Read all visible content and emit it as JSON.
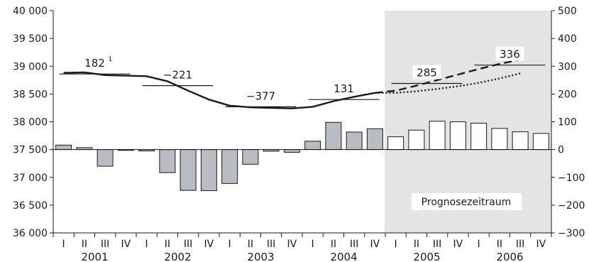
{
  "chart_data": {
    "type": "bar+line",
    "left_axis": {
      "ylim": [
        36000,
        40000
      ],
      "ticks": [
        "36 000",
        "36 500",
        "37 000",
        "37 500",
        "38 000",
        "38 500",
        "39 000",
        "39 500",
        "40 000"
      ],
      "tick_values": [
        36000,
        36500,
        37000,
        37500,
        38000,
        38500,
        39000,
        39500,
        40000
      ]
    },
    "right_axis": {
      "ylim": [
        -300,
        500
      ],
      "ticks": [
        "−300",
        "−200",
        "−100",
        "0",
        "100",
        "200",
        "300",
        "400",
        "500"
      ],
      "tick_values": [
        -300,
        -200,
        -100,
        0,
        100,
        200,
        300,
        400,
        500
      ]
    },
    "quarters": [
      "I",
      "II",
      "III",
      "IV",
      "I",
      "II",
      "III",
      "IV",
      "I",
      "II",
      "III",
      "IV",
      "I",
      "II",
      "III",
      "IV",
      "I",
      "II",
      "III",
      "IV",
      "I",
      "II",
      "III",
      "IV"
    ],
    "years": [
      "2001",
      "2002",
      "2003",
      "2004",
      "2005",
      "2006"
    ],
    "forecast_label": "Prognosezeitraum",
    "forecast_start_index": 16,
    "bars": [
      16,
      7,
      -60,
      -3,
      -5,
      -83,
      -147,
      -148,
      -122,
      -53,
      -6,
      -10,
      30,
      98,
      63,
      75,
      46,
      70,
      102,
      100,
      95,
      76,
      64,
      58
    ],
    "line_actual": [
      38880,
      38890,
      38840,
      38830,
      38820,
      38730,
      38560,
      38400,
      38290,
      38260,
      38250,
      38240,
      38270,
      38370,
      38450,
      38520
    ],
    "line_forecast_dashed": [
      38520,
      38560,
      38650,
      38750,
      38850,
      38950,
      39040,
      39120
    ],
    "line_forecast_dotted": [
      38520,
      38520,
      38550,
      38590,
      38640,
      38700,
      38780,
      38870
    ],
    "annual_change": [
      {
        "year": "2001",
        "label": "182",
        "sup": "1",
        "value": 38860
      },
      {
        "year": "2002",
        "label": "−221",
        "value": 38650
      },
      {
        "year": "2003",
        "label": "−377",
        "value": 38270
      },
      {
        "year": "2004",
        "label": "131",
        "value": 38400
      },
      {
        "year": "2005",
        "label": "285",
        "value": 38690
      },
      {
        "year": "2006",
        "label": "336",
        "value": 39020
      }
    ],
    "colors": {
      "bar_actual": "#b9bcc2",
      "bar_forecast": "#ffffff",
      "line": "#1a1a1a",
      "forecast_bg": "#e3e4e6"
    }
  }
}
